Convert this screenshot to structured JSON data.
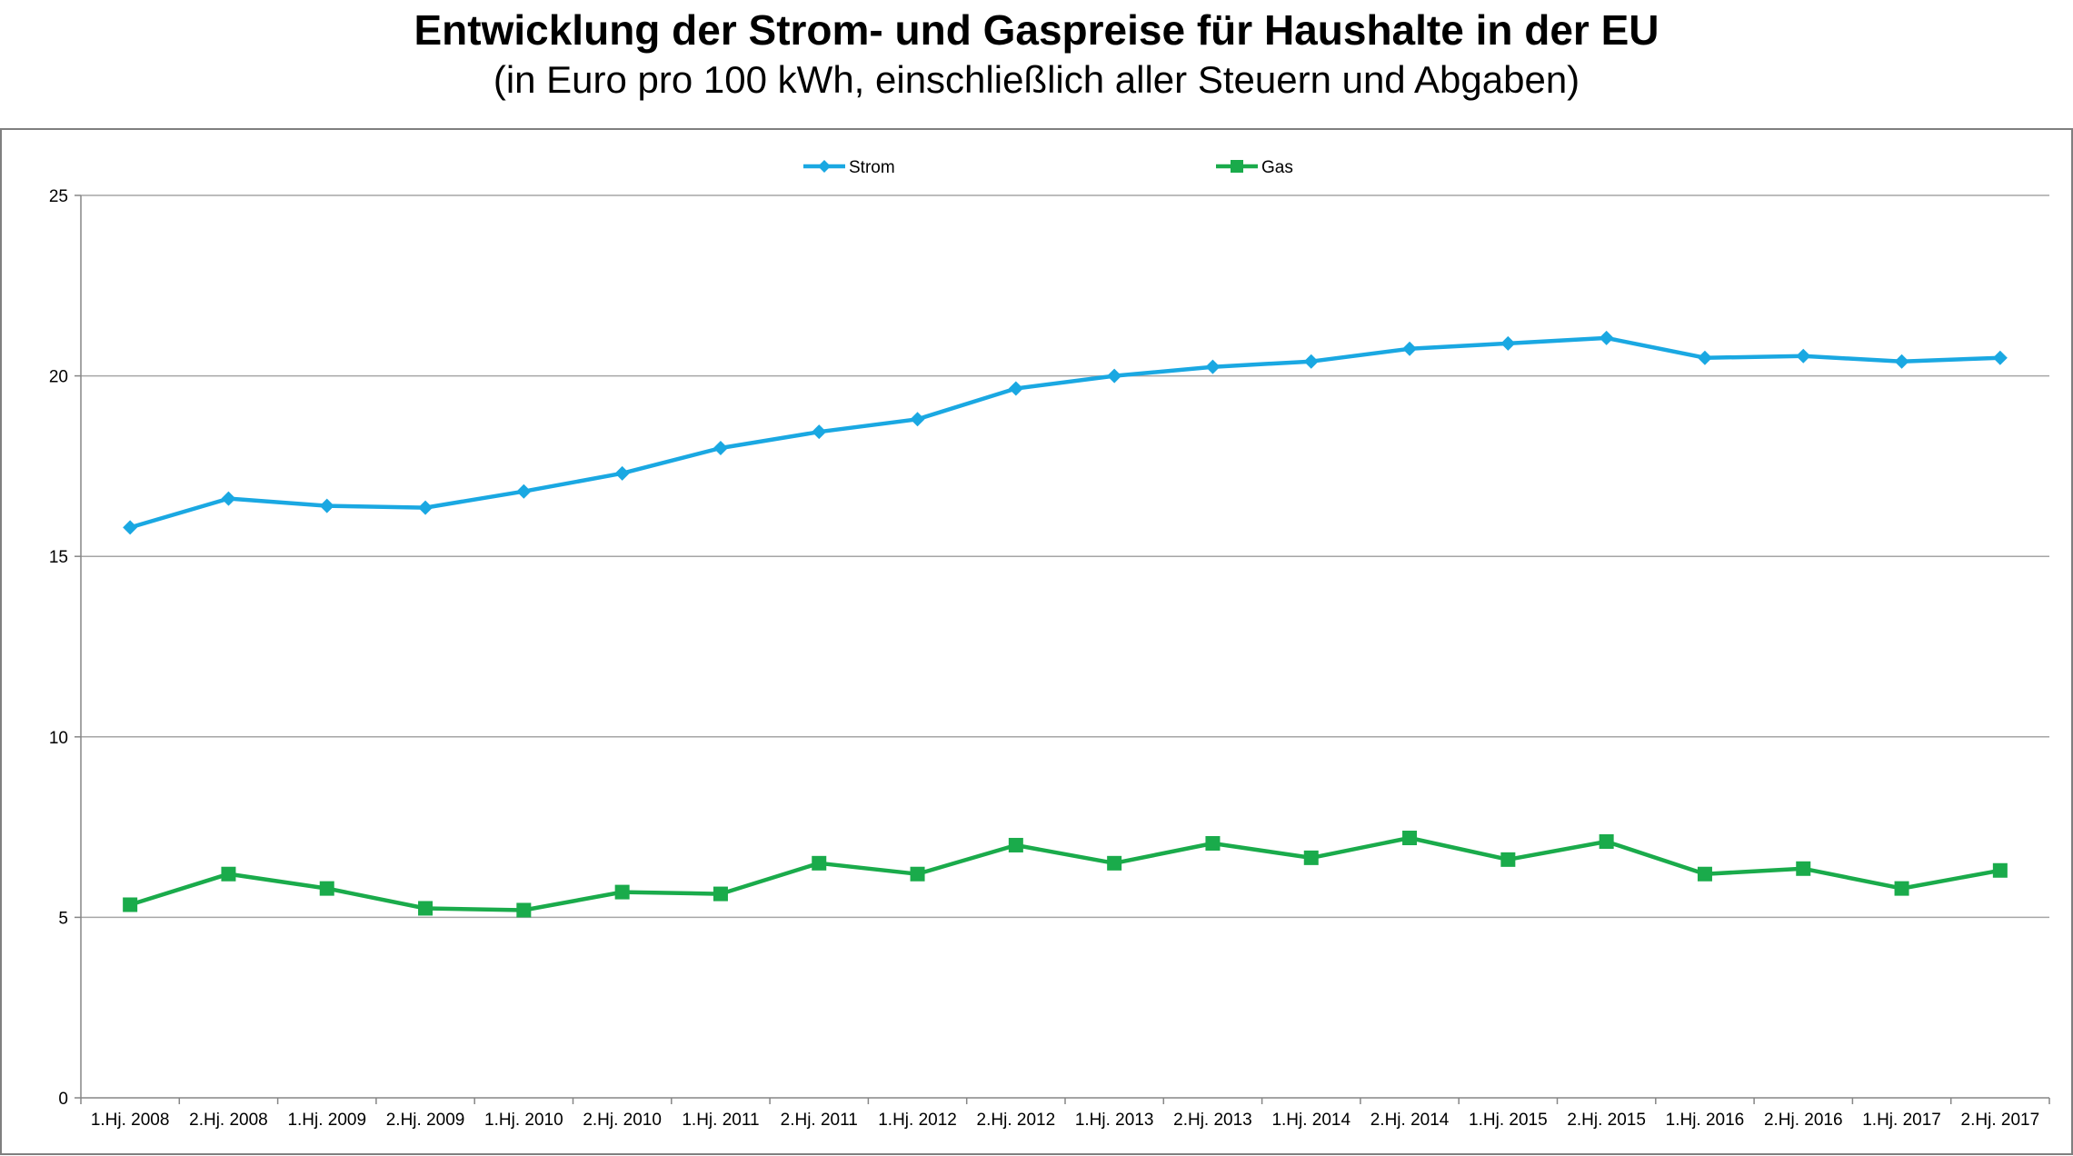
{
  "chart_data": {
    "type": "line",
    "title": "Entwicklung der Strom- und Gaspreise für Haushalte in der EU",
    "subtitle": "(in Euro pro 100 kWh, einschließlich aller Steuern und Abgaben)",
    "xlabel": "",
    "ylabel": "",
    "ylim": [
      0,
      25
    ],
    "yticks": [
      0,
      5,
      10,
      15,
      20,
      25
    ],
    "grid": true,
    "legend": "top",
    "categories": [
      "1.Hj. 2008",
      "2.Hj. 2008",
      "1.Hj. 2009",
      "2.Hj. 2009",
      "1.Hj. 2010",
      "2.Hj. 2010",
      "1.Hj. 2011",
      "2.Hj. 2011",
      "1.Hj. 2012",
      "2.Hj. 2012",
      "1.Hj. 2013",
      "2.Hj. 2013",
      "1.Hj. 2014",
      "2.Hj. 2014",
      "1.Hj. 2015",
      "2.Hj. 2015",
      "1.Hj. 2016",
      "2.Hj. 2016",
      "1.Hj. 2017",
      "2.Hj. 2017"
    ],
    "series": [
      {
        "name": "Strom",
        "color": "#1aa8e2",
        "marker": "diamond",
        "values": [
          15.8,
          16.6,
          16.4,
          16.35,
          16.8,
          17.3,
          18.0,
          18.45,
          18.8,
          19.65,
          20.0,
          20.25,
          20.4,
          20.75,
          20.9,
          21.05,
          20.5,
          20.55,
          20.4,
          20.5
        ]
      },
      {
        "name": "Gas",
        "color": "#1aab4b",
        "marker": "square",
        "values": [
          5.35,
          6.2,
          5.8,
          5.25,
          5.2,
          5.7,
          5.65,
          6.5,
          6.2,
          7.0,
          6.5,
          7.05,
          6.65,
          7.2,
          6.6,
          7.1,
          6.2,
          6.35,
          5.8,
          6.3
        ]
      }
    ]
  }
}
